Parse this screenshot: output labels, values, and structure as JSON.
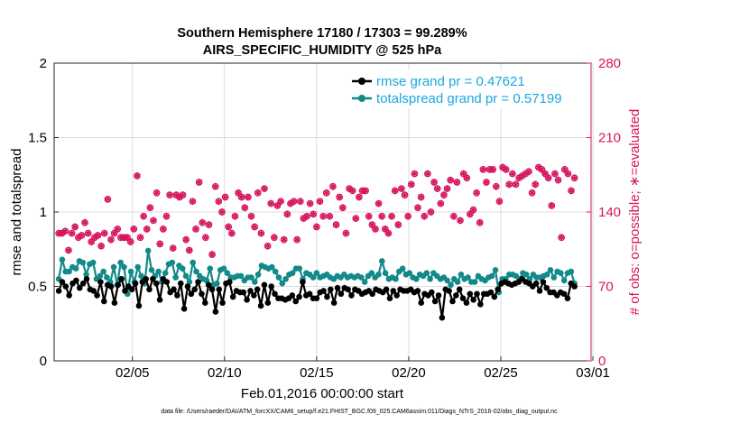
{
  "chart_data": {
    "type": "line",
    "title": "Southern Hemisphere 17180 / 17303 = 99.289%",
    "subtitle": "AIRS_SPECIFIC_HUMIDITY @ 525 hPa",
    "xlabel": "Feb.01,2016 00:00:00 start",
    "ylabel": "rmse and totalspread",
    "ylabel_right": "# of obs: o=possible; ∗=evaluated",
    "footnote": "data file: /Users/raeder/DAI/ATM_forcXX/CAM6_setup/f.e21.FHIST_BGC.f09_025.CAM6assim.011/Diags_NTrS_2016-02/obs_diag_output.nc",
    "x_range": [
      0.75,
      29.9
    ],
    "ylim": [
      0,
      2
    ],
    "ylim_right": [
      0,
      280
    ],
    "xticks": [
      {
        "label": "02/05",
        "value": 5
      },
      {
        "label": "02/10",
        "value": 10
      },
      {
        "label": "02/15",
        "value": 15
      },
      {
        "label": "02/20",
        "value": 20
      },
      {
        "label": "02/25",
        "value": 25
      },
      {
        "label": "03/01",
        "value": 30
      }
    ],
    "yticks_left": [
      "0",
      "0.5",
      "1",
      "1.5",
      "2"
    ],
    "yticks_right": [
      "0",
      "70",
      "140",
      "210",
      "280"
    ],
    "grid": true,
    "legend_position": "top-right",
    "colors": {
      "rmse": "#000000",
      "totalspread": "#138a8a",
      "obs": "#d6155f",
      "legend_text": "#1aa7e0"
    },
    "series": [
      {
        "name": "rmse grand pr = 0.47621",
        "color": "#000000",
        "values": [
          0.47,
          0.53,
          0.5,
          0.44,
          0.52,
          0.54,
          0.49,
          0.52,
          0.55,
          0.48,
          0.47,
          0.44,
          0.53,
          0.4,
          0.51,
          0.5,
          0.39,
          0.51,
          0.55,
          0.47,
          0.5,
          0.48,
          0.52,
          0.37,
          0.53,
          0.55,
          0.48,
          0.55,
          0.52,
          0.41,
          0.55,
          0.53,
          0.46,
          0.48,
          0.44,
          0.52,
          0.35,
          0.5,
          0.45,
          0.48,
          0.53,
          0.45,
          0.39,
          0.51,
          0.48,
          0.33,
          0.48,
          0.39,
          0.52,
          0.53,
          0.43,
          0.47,
          0.46,
          0.46,
          0.41,
          0.47,
          0.44,
          0.48,
          0.37,
          0.51,
          0.39,
          0.5,
          0.45,
          0.42,
          0.42,
          0.41,
          0.42,
          0.44,
          0.4,
          0.43,
          0.53,
          0.44,
          0.45,
          0.42,
          0.42,
          0.46,
          0.47,
          0.43,
          0.48,
          0.39,
          0.49,
          0.45,
          0.49,
          0.48,
          0.44,
          0.48,
          0.47,
          0.45,
          0.46,
          0.47,
          0.45,
          0.48,
          0.47,
          0.46,
          0.48,
          0.42,
          0.47,
          0.44,
          0.48,
          0.47,
          0.47,
          0.48,
          0.46,
          0.47,
          0.39,
          0.45,
          0.44,
          0.46,
          0.4,
          0.44,
          0.29,
          0.48,
          0.47,
          0.4,
          0.44,
          0.48,
          0.42,
          0.39,
          0.45,
          0.41,
          0.45,
          0.38,
          0.45,
          0.45,
          0.46,
          0.43,
          0.48,
          0.52,
          0.53,
          0.52,
          0.51,
          0.52,
          0.53,
          0.55,
          0.53,
          0.52,
          0.5,
          0.52,
          0.47,
          0.53,
          0.49,
          0.46,
          0.46,
          0.44,
          0.46,
          0.45,
          0.42,
          0.52,
          0.5
        ]
      },
      {
        "name": "totalspread grand pr = 0.57199",
        "color": "#138a8a",
        "values": [
          0.55,
          0.68,
          0.6,
          0.6,
          0.63,
          0.62,
          0.67,
          0.66,
          0.58,
          0.65,
          0.66,
          0.55,
          0.57,
          0.6,
          0.56,
          0.53,
          0.63,
          0.51,
          0.66,
          0.63,
          0.45,
          0.6,
          0.53,
          0.63,
          0.57,
          0.52,
          0.74,
          0.61,
          0.57,
          0.6,
          0.53,
          0.59,
          0.65,
          0.66,
          0.56,
          0.64,
          0.62,
          0.57,
          0.53,
          0.66,
          0.6,
          0.57,
          0.55,
          0.54,
          0.62,
          0.51,
          0.52,
          0.61,
          0.62,
          0.59,
          0.56,
          0.56,
          0.57,
          0.57,
          0.54,
          0.56,
          0.56,
          0.53,
          0.58,
          0.64,
          0.63,
          0.62,
          0.63,
          0.6,
          0.56,
          0.52,
          0.55,
          0.58,
          0.59,
          0.62,
          0.62,
          0.55,
          0.59,
          0.58,
          0.56,
          0.59,
          0.56,
          0.57,
          0.58,
          0.56,
          0.55,
          0.57,
          0.56,
          0.58,
          0.56,
          0.57,
          0.56,
          0.57,
          0.56,
          0.53,
          0.57,
          0.59,
          0.56,
          0.58,
          0.67,
          0.59,
          0.55,
          0.56,
          0.55,
          0.6,
          0.62,
          0.58,
          0.59,
          0.56,
          0.55,
          0.58,
          0.57,
          0.59,
          0.55,
          0.59,
          0.57,
          0.55,
          0.56,
          0.54,
          0.51,
          0.55,
          0.53,
          0.58,
          0.55,
          0.56,
          0.53,
          0.53,
          0.57,
          0.55,
          0.54,
          0.56,
          0.57,
          0.61,
          0.46,
          0.55,
          0.55,
          0.58,
          0.58,
          0.57,
          0.55,
          0.59,
          0.58,
          0.55,
          0.58,
          0.56,
          0.56,
          0.57,
          0.58,
          0.61,
          0.56,
          0.6,
          0.59,
          0.54,
          0.59,
          0.6,
          0.52
        ]
      },
      {
        "name": "# of obs possible",
        "color": "#d6155f",
        "marker": "o",
        "axis": "right",
        "values": [
          120,
          120,
          122,
          104,
          120,
          126,
          116,
          118,
          130,
          120,
          112,
          116,
          118,
          108,
          120,
          152,
          114,
          120,
          124,
          116,
          116,
          116,
          112,
          124,
          174,
          116,
          136,
          124,
          144,
          132,
          158,
          110,
          124,
          136,
          156,
          106,
          156,
          154,
          156,
          114,
          104,
          150,
          124,
          168,
          130,
          116,
          128,
          100,
          164,
          150,
          140,
          154,
          126,
          120,
          136,
          158,
          154,
          144,
          154,
          136,
          126,
          158,
          120,
          162,
          108,
          148,
          116,
          146,
          150,
          114,
          138,
          148,
          150,
          114,
          150,
          134,
          136,
          148,
          138,
          126,
          150,
          136,
          158,
          136,
          164,
          128,
          154,
          144,
          120,
          162,
          160,
          134,
          154,
          160,
          160,
          136,
          128,
          124,
          148,
          136,
          124,
          120,
          136,
          160,
          128,
          162,
          156,
          136,
          166,
          176,
          144,
          154,
          136,
          176,
          140,
          168,
          162,
          148,
          156,
          162,
          170,
          136,
          168,
          132,
          176,
          172,
          138,
          142,
          158,
          130,
          180,
          168,
          180,
          180,
          164,
          150,
          182,
          180,
          166,
          176,
          166,
          172,
          174,
          176,
          178,
          158,
          166,
          182,
          180,
          176,
          172,
          146,
          176,
          170,
          116,
          180,
          176,
          160,
          172
        ]
      },
      {
        "name": "# of obs evaluated",
        "color": "#d6155f",
        "marker": "*",
        "axis": "right",
        "values": [
          120,
          120,
          122,
          104,
          120,
          126,
          116,
          118,
          130,
          120,
          112,
          116,
          118,
          108,
          120,
          152,
          114,
          120,
          124,
          116,
          116,
          116,
          112,
          124,
          174,
          116,
          136,
          124,
          144,
          132,
          158,
          110,
          124,
          136,
          156,
          106,
          156,
          154,
          156,
          114,
          104,
          150,
          124,
          168,
          130,
          116,
          128,
          100,
          164,
          150,
          140,
          154,
          126,
          120,
          136,
          158,
          154,
          144,
          154,
          136,
          126,
          158,
          120,
          162,
          108,
          148,
          116,
          146,
          150,
          114,
          138,
          148,
          150,
          114,
          150,
          134,
          136,
          148,
          138,
          126,
          150,
          136,
          158,
          136,
          164,
          128,
          154,
          144,
          120,
          162,
          160,
          134,
          154,
          160,
          160,
          136,
          128,
          124,
          148,
          136,
          124,
          120,
          136,
          160,
          128,
          162,
          156,
          136,
          166,
          176,
          144,
          154,
          136,
          176,
          140,
          168,
          162,
          148,
          156,
          162,
          170,
          136,
          168,
          132,
          176,
          172,
          138,
          142,
          158,
          130,
          180,
          168,
          180,
          180,
          164,
          150,
          182,
          180,
          166,
          176,
          166,
          172,
          174,
          176,
          178,
          158,
          166,
          182,
          180,
          176,
          172,
          146,
          176,
          170,
          116,
          180,
          176,
          160,
          172
        ]
      }
    ]
  }
}
